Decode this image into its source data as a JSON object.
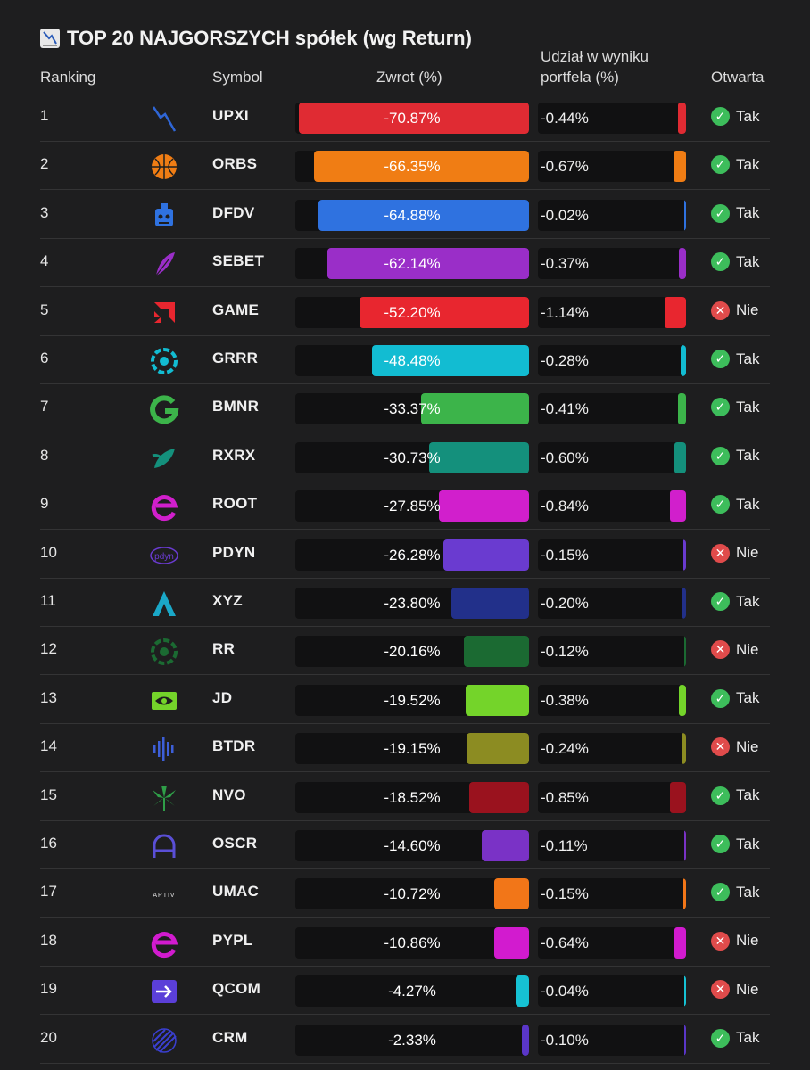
{
  "title": "TOP 20 NAJGORSZYCH spółek (wg Return)",
  "headers": {
    "ranking": "Ranking",
    "symbol": "Symbol",
    "return": "Zwrot (%)",
    "contribution_line1": "Udział w wyniku",
    "contribution_line2": "portfela (%)",
    "open": "Otwarta"
  },
  "rows": [
    {
      "rank": "1",
      "symbol": "UPXI",
      "return": -70.87,
      "return_label": "-70.87%",
      "contribution": -0.44,
      "contribution_label": "-0.44%",
      "color": "#e02b33",
      "open": true,
      "open_label": "Tak",
      "icon": "chart-down-icon"
    },
    {
      "rank": "2",
      "symbol": "ORBS",
      "return": -66.35,
      "return_label": "-66.35%",
      "contribution": -0.67,
      "contribution_label": "-0.67%",
      "color": "#f07d14",
      "open": true,
      "open_label": "Tak",
      "icon": "globe-icon"
    },
    {
      "rank": "3",
      "symbol": "DFDV",
      "return": -64.88,
      "return_label": "-64.88%",
      "contribution": -0.02,
      "contribution_label": "-0.02%",
      "color": "#2f72e0",
      "open": true,
      "open_label": "Tak",
      "icon": "robot-icon"
    },
    {
      "rank": "4",
      "symbol": "SEBET",
      "return": -62.14,
      "return_label": "-62.14%",
      "contribution": -0.37,
      "contribution_label": "-0.37%",
      "color": "#9a2ec8",
      "open": true,
      "open_label": "Tak",
      "icon": "feather-icon"
    },
    {
      "rank": "5",
      "symbol": "GAME",
      "return": -52.2,
      "return_label": "-52.20%",
      "contribution": -1.14,
      "contribution_label": "-1.14%",
      "color": "#e8262f",
      "open": false,
      "open_label": "Nie",
      "icon": "amd-logo-icon"
    },
    {
      "rank": "6",
      "symbol": "GRRR",
      "return": -48.48,
      "return_label": "-48.48%",
      "contribution": -0.28,
      "contribution_label": "-0.28%",
      "color": "#12bcd2",
      "open": true,
      "open_label": "Tak",
      "icon": "aperture-icon"
    },
    {
      "rank": "7",
      "symbol": "BMNR",
      "return": -33.37,
      "return_label": "-33.37%",
      "contribution": -0.41,
      "contribution_label": "-0.41%",
      "color": "#3cb44a",
      "open": true,
      "open_label": "Tak",
      "icon": "g-logo-icon"
    },
    {
      "rank": "8",
      "symbol": "RXRX",
      "return": -30.73,
      "return_label": "-30.73%",
      "contribution": -0.6,
      "contribution_label": "-0.60%",
      "color": "#14907c",
      "open": true,
      "open_label": "Tak",
      "icon": "leaf-icon"
    },
    {
      "rank": "9",
      "symbol": "ROOT",
      "return": -27.85,
      "return_label": "-27.85%",
      "contribution": -0.84,
      "contribution_label": "-0.84%",
      "color": "#d11fcc",
      "open": true,
      "open_label": "Tak",
      "icon": "e-logo-icon"
    },
    {
      "rank": "10",
      "symbol": "PDYN",
      "return": -26.28,
      "return_label": "-26.28%",
      "contribution": -0.15,
      "contribution_label": "-0.15%",
      "color": "#6a3bd0",
      "open": false,
      "open_label": "Nie",
      "icon": "pdyn-logo-icon"
    },
    {
      "rank": "11",
      "symbol": "XYZ",
      "return": -23.8,
      "return_label": "-23.80%",
      "contribution": -0.2,
      "contribution_label": "-0.20%",
      "color": "#22308a",
      "open": true,
      "open_label": "Tak",
      "icon": "a-logo-icon"
    },
    {
      "rank": "12",
      "symbol": "RR",
      "return": -20.16,
      "return_label": "-20.16%",
      "contribution": -0.12,
      "contribution_label": "-0.12%",
      "color": "#1b6a32",
      "open": false,
      "open_label": "Nie",
      "icon": "aperture-icon"
    },
    {
      "rank": "13",
      "symbol": "JD",
      "return": -19.52,
      "return_label": "-19.52%",
      "contribution": -0.38,
      "contribution_label": "-0.38%",
      "color": "#74d42a",
      "open": true,
      "open_label": "Tak",
      "icon": "eye-logo-icon"
    },
    {
      "rank": "14",
      "symbol": "BTDR",
      "return": -19.15,
      "return_label": "-19.15%",
      "contribution": -0.24,
      "contribution_label": "-0.24%",
      "color": "#8c8c22",
      "open": false,
      "open_label": "Nie",
      "icon": "soundwave-icon"
    },
    {
      "rank": "15",
      "symbol": "NVO",
      "return": -18.52,
      "return_label": "-18.52%",
      "contribution": -0.85,
      "contribution_label": "-0.85%",
      "color": "#9a121e",
      "open": true,
      "open_label": "Tak",
      "icon": "palm-icon"
    },
    {
      "rank": "16",
      "symbol": "OSCR",
      "return": -14.6,
      "return_label": "-14.60%",
      "contribution": -0.11,
      "contribution_label": "-0.11%",
      "color": "#7a32c6",
      "open": true,
      "open_label": "Tak",
      "icon": "a-round-logo-icon"
    },
    {
      "rank": "17",
      "symbol": "UMAC",
      "return": -10.72,
      "return_label": "-10.72%",
      "contribution": -0.15,
      "contribution_label": "-0.15%",
      "color": "#f27618",
      "open": true,
      "open_label": "Tak",
      "icon": "aptiv-logo-icon",
      "logo_text": "APTIV"
    },
    {
      "rank": "18",
      "symbol": "PYPL",
      "return": -10.86,
      "return_label": "-10.86%",
      "contribution": -0.64,
      "contribution_label": "-0.64%",
      "color": "#d21bcf",
      "open": false,
      "open_label": "Nie",
      "icon": "e-logo-icon"
    },
    {
      "rank": "19",
      "symbol": "QCOM",
      "return": -4.27,
      "return_label": "-4.27%",
      "contribution": -0.04,
      "contribution_label": "-0.04%",
      "color": "#16c2d4",
      "open": false,
      "open_label": "Nie",
      "icon": "arrow-right-box-icon"
    },
    {
      "rank": "20",
      "symbol": "CRM",
      "return": -2.33,
      "return_label": "-2.33%",
      "contribution": -0.1,
      "contribution_label": "-0.10%",
      "color": "#5a36c8",
      "open": true,
      "open_label": "Tak",
      "icon": "sphere-lines-icon"
    }
  ],
  "scale": {
    "return_max": 72,
    "contribution_max": 1.14
  }
}
